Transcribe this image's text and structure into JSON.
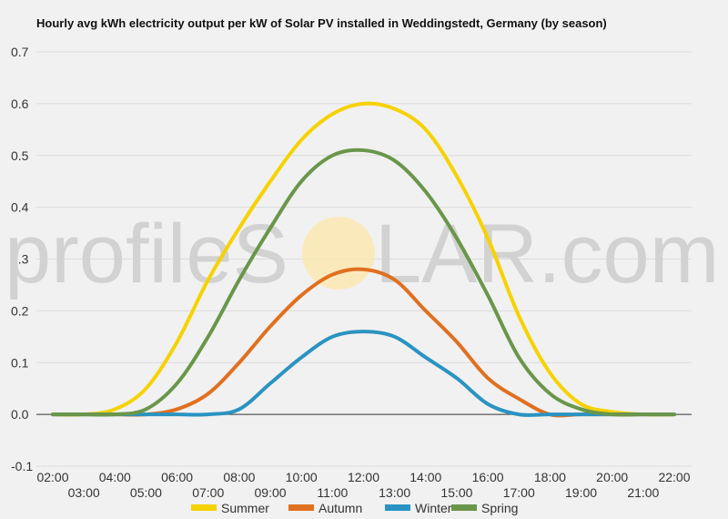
{
  "chart_data": {
    "type": "line",
    "title": "Hourly avg kWh electricity output per kW of Solar PV installed in Weddingstedt, Germany (by season)",
    "xlabel": "",
    "ylabel": "",
    "ylim": [
      -0.1,
      0.7
    ],
    "yticks": [
      "-0.1",
      "0.0",
      "0.1",
      "0.2",
      "0.3",
      "0.4",
      "0.5",
      "0.6",
      "0.7"
    ],
    "grid": true,
    "legend_position": "bottom",
    "x": [
      "02:00",
      "03:00",
      "04:00",
      "05:00",
      "06:00",
      "07:00",
      "08:00",
      "09:00",
      "10:00",
      "11:00",
      "12:00",
      "13:00",
      "14:00",
      "15:00",
      "16:00",
      "17:00",
      "18:00",
      "19:00",
      "20:00",
      "21:00",
      "22:00"
    ],
    "series": [
      {
        "name": "Summer",
        "color": "#f6d200",
        "values": [
          0.0,
          0.0,
          0.01,
          0.05,
          0.14,
          0.26,
          0.36,
          0.45,
          0.53,
          0.58,
          0.6,
          0.59,
          0.55,
          0.46,
          0.34,
          0.19,
          0.08,
          0.02,
          0.005,
          0.0,
          0.0
        ]
      },
      {
        "name": "Autumn",
        "color": "#e0701f",
        "values": [
          0.0,
          0.0,
          0.0,
          0.0,
          0.01,
          0.04,
          0.1,
          0.17,
          0.23,
          0.27,
          0.28,
          0.26,
          0.2,
          0.14,
          0.07,
          0.03,
          0.0,
          0.0,
          0.0,
          0.0,
          0.0
        ]
      },
      {
        "name": "Winter",
        "color": "#2a93c1",
        "values": [
          0.0,
          0.0,
          0.0,
          0.0,
          0.0,
          0.0,
          0.01,
          0.06,
          0.11,
          0.15,
          0.16,
          0.15,
          0.11,
          0.07,
          0.02,
          0.0,
          0.0,
          0.0,
          0.0,
          0.0,
          0.0
        ]
      },
      {
        "name": "Spring",
        "color": "#6a964a",
        "values": [
          0.0,
          0.0,
          0.0,
          0.01,
          0.06,
          0.15,
          0.26,
          0.36,
          0.45,
          0.5,
          0.51,
          0.49,
          0.43,
          0.34,
          0.23,
          0.11,
          0.04,
          0.01,
          0.0,
          0.0,
          0.0
        ]
      }
    ]
  },
  "watermark": {
    "left": "profileS",
    "right": "LAR.com"
  }
}
